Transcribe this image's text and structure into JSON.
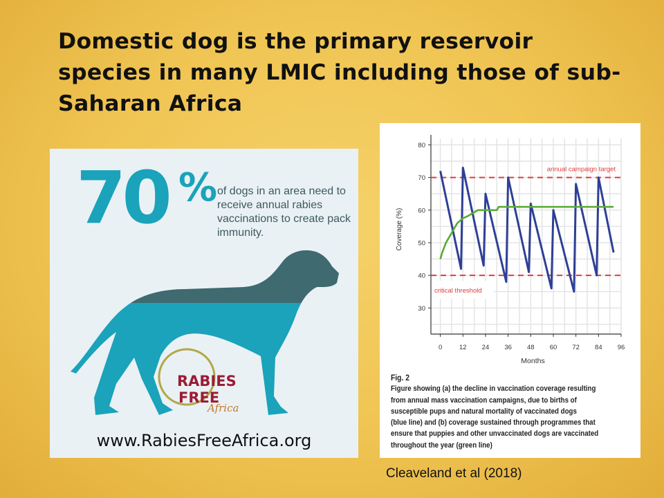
{
  "slide": {
    "title": "Domestic dog is the primary reservoir species in many LMIC including those of sub-Saharan Africa",
    "citation": "Cleaveland et al (2018)",
    "background_color": "#efc452"
  },
  "infographic": {
    "big_number": "70",
    "percent_sign": "%",
    "text": "of dogs in an area need to receive annual rabies vaccinations to create pack immunity.",
    "vaccinated_fraction": 0.7,
    "logo": {
      "line1": "RABIES",
      "line2": "FREE",
      "line3": "Africa"
    },
    "url": "www.RabiesFreeAfrica.org",
    "colors": {
      "teal": "#1aa3bb",
      "dark_teal": "#3e6a70",
      "panel": "#eaf1f4",
      "logo_red": "#9b1c35"
    }
  },
  "chart_data": {
    "type": "line",
    "xlabel": "Months",
    "ylabel": "Coverage (%)",
    "xlim": [
      -5,
      96
    ],
    "ylim": [
      22,
      82
    ],
    "xticks": [
      0,
      12,
      24,
      36,
      48,
      60,
      72,
      84,
      96
    ],
    "yticks": [
      30,
      40,
      50,
      60,
      70,
      80
    ],
    "grid": true,
    "series": [
      {
        "color": "#2e3f95",
        "x": [
          0,
          11,
          12,
          23,
          24,
          35,
          36,
          47,
          48,
          59,
          60,
          71,
          72,
          83,
          84,
          92
        ],
        "y": [
          72,
          42,
          73,
          43,
          65,
          38,
          70,
          41,
          62,
          36,
          60,
          35,
          68,
          40,
          70,
          47
        ]
      },
      {
        "color": "#5aaa35",
        "x": [
          0,
          1,
          3,
          6,
          9,
          12,
          14,
          17,
          20,
          30,
          31,
          92
        ],
        "y": [
          45,
          47,
          50,
          53,
          56,
          57.5,
          58,
          59,
          60,
          60,
          61,
          61
        ]
      }
    ],
    "reference_lines": [
      {
        "y": 70,
        "label": "annual campaign target",
        "color": "#e03a3a"
      },
      {
        "y": 40,
        "label": "critical threshold",
        "color": "#e03a3a"
      }
    ],
    "caption_title": "Fig. 2",
    "caption_lines": [
      "Figure showing (a) the decline in vaccination coverage resulting",
      "from annual mass vaccination campaigns, due to births of",
      "susceptible pups and natural mortality of vaccinated dogs",
      "(blue line) and (b) coverage sustained through programmes that",
      "ensure that puppies and other unvaccinated dogs are vaccinated",
      "throughout the year (green line)"
    ]
  }
}
